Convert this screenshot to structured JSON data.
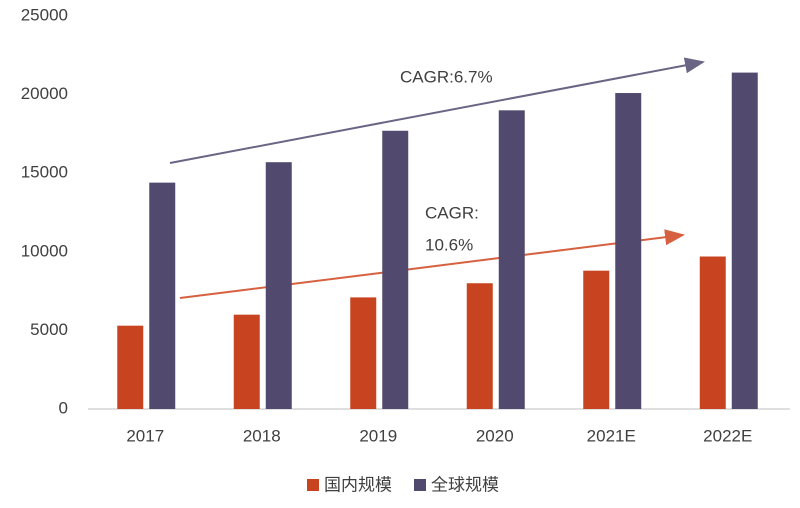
{
  "chart_data": {
    "type": "bar",
    "categories": [
      "2017",
      "2018",
      "2019",
      "2020",
      "2021E",
      "2022E"
    ],
    "series": [
      {
        "name": "国内规模",
        "color": "#c8431f",
        "values": [
          5300,
          6000,
          7100,
          8000,
          8800,
          9700
        ]
      },
      {
        "name": "全球规模",
        "color": "#524a6e",
        "values": [
          14400,
          15700,
          17700,
          19000,
          20100,
          21400
        ]
      }
    ],
    "ylim": [
      0,
      25000
    ],
    "yticks": [
      0,
      5000,
      10000,
      15000,
      20000,
      25000
    ],
    "grid": false,
    "legend": "bottom",
    "annotations": [
      "CAGR:6.7%",
      "CAGR:",
      "10.6%"
    ]
  }
}
